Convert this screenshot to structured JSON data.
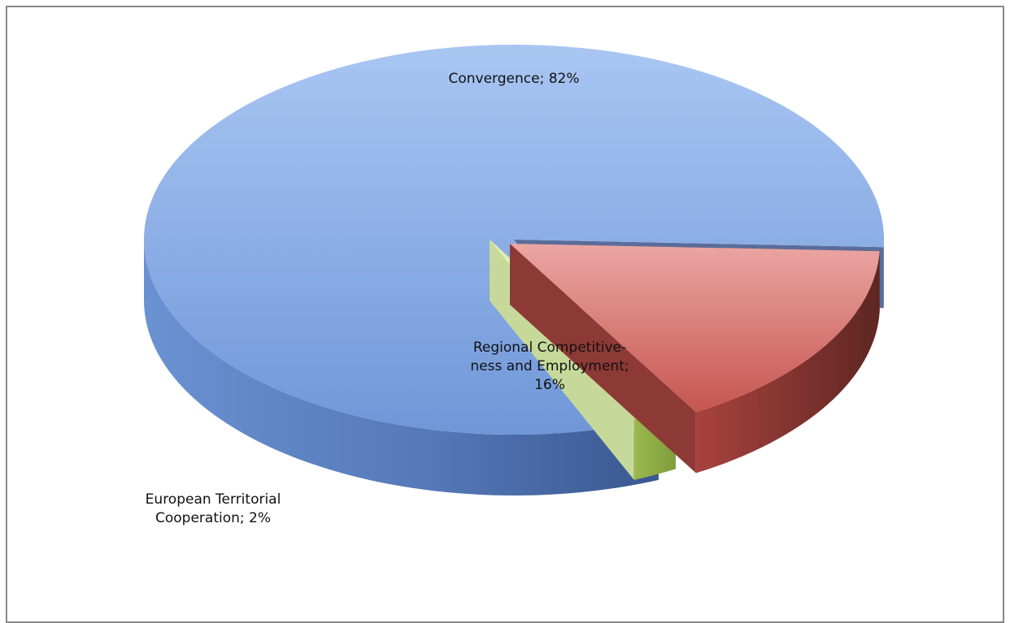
{
  "chart_data": {
    "type": "pie",
    "style": "3d-exploded",
    "title": "",
    "categories": [
      "Convergence",
      "Regional Competitiveness and Employment",
      "European Territorial Cooperation"
    ],
    "values": [
      82,
      16,
      2
    ],
    "unit": "%",
    "colors": [
      "#5b86cc",
      "#c6504d",
      "#9bbb59"
    ],
    "labels": [
      [
        "Convergence; 82%"
      ],
      [
        "Regional Competitive-",
        "ness and Employment;",
        "16%"
      ],
      [
        "European Territorial",
        "Cooperation; 2%"
      ]
    ]
  }
}
